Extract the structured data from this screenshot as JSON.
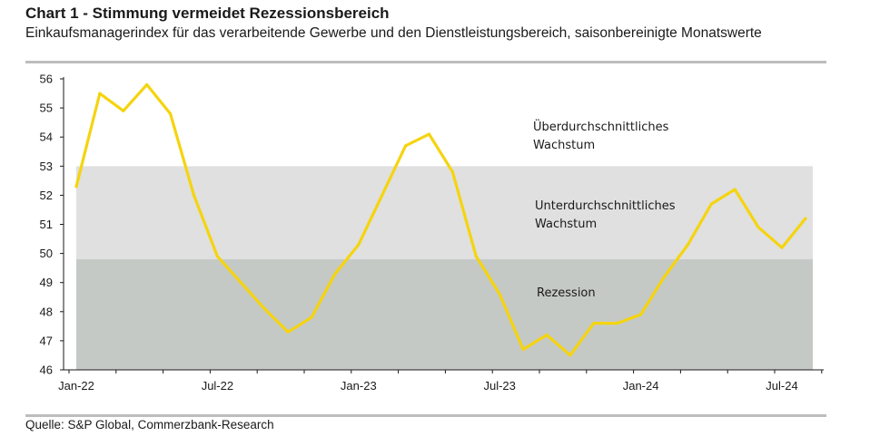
{
  "title": "Chart 1 - Stimmung vermeidet Rezessionsbereich",
  "subtitle": "Einkaufsmanagerindex für das verarbeitende Gewerbe und den Dienstleistungsbereich, saisonbereinigte Monatswerte",
  "source": "Quelle: S&P Global, Commerzbank-Research",
  "colors": {
    "line": "#f5d40f",
    "recession_band": "#c5c9c6",
    "below_avg_band": "#e0e0e0",
    "rule": "#bdbdbd"
  },
  "chart_data": {
    "type": "line",
    "x": [
      "2022-01",
      "2022-02",
      "2022-03",
      "2022-04",
      "2022-05",
      "2022-06",
      "2022-07",
      "2022-08",
      "2022-09",
      "2022-10",
      "2022-11",
      "2022-12",
      "2023-01",
      "2023-02",
      "2023-03",
      "2023-04",
      "2023-05",
      "2023-06",
      "2023-07",
      "2023-08",
      "2023-09",
      "2023-10",
      "2023-11",
      "2023-12",
      "2024-01",
      "2024-02",
      "2024-03",
      "2024-04",
      "2024-05",
      "2024-06",
      "2024-07",
      "2024-08"
    ],
    "series": [
      {
        "values": [
          52.3,
          55.5,
          54.9,
          55.8,
          54.8,
          52.0,
          49.9,
          49.0,
          48.1,
          47.3,
          47.8,
          49.3,
          50.3,
          52.0,
          53.7,
          54.1,
          52.8,
          49.9,
          48.6,
          46.7,
          47.2,
          46.5,
          47.6,
          47.6,
          47.9,
          49.2,
          50.3,
          51.7,
          52.2,
          50.9,
          50.2,
          51.2
        ]
      }
    ],
    "ylim": [
      46,
      56
    ],
    "yticks": [
      "46",
      "47",
      "48",
      "49",
      "50",
      "51",
      "52",
      "53",
      "54",
      "55",
      "56"
    ],
    "xtick_labels": [
      "Jan-22",
      "Jul-22",
      "Jan-23",
      "Jul-23",
      "Jan-24",
      "Jul-24"
    ],
    "bands": [
      {
        "label": "Rezession",
        "from": 46,
        "to": 49.8
      },
      {
        "label": "Unterdurchschnittliches Wachstum",
        "from": 49.8,
        "to": 53
      },
      {
        "label": "Überdurchschnittliches Wachstum",
        "from": 53,
        "to": 56
      }
    ],
    "annotations": {
      "above_line1": "Überdurchschnittliches",
      "above_line2": "Wachstum",
      "below_line1": "Unterdurchschnittliches",
      "below_line2": "Wachstum",
      "recession": "Rezession"
    },
    "grid": false
  }
}
